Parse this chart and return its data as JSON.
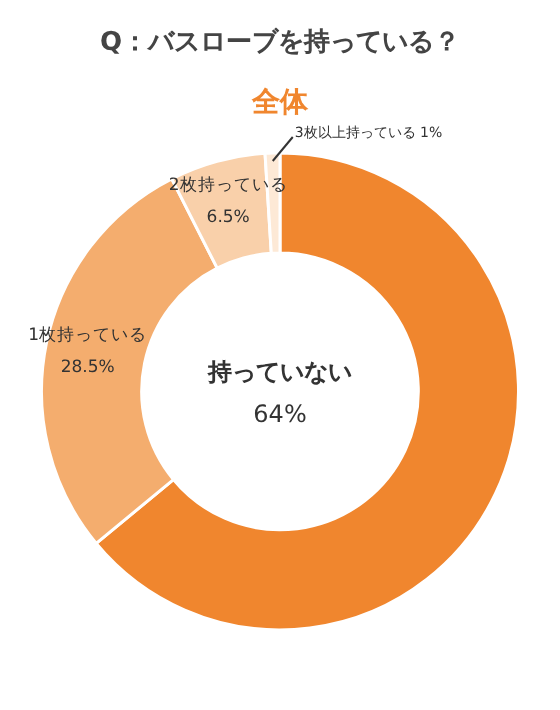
{
  "chart_data": {
    "type": "donut",
    "title": "Q：バスローブを持っている？",
    "subtitle": "全体",
    "categories": [
      "持っていない",
      "1枚持っている",
      "2枚持っている",
      "3枚以上持っている"
    ],
    "values": [
      64,
      28.5,
      6.5,
      1
    ],
    "colors": [
      "#f0862e",
      "#f4ad6e",
      "#f9d0aa",
      "#fde9d6"
    ],
    "value_labels": [
      "64%",
      "28.5%",
      "6.5%",
      "1%"
    ],
    "legend": false
  }
}
